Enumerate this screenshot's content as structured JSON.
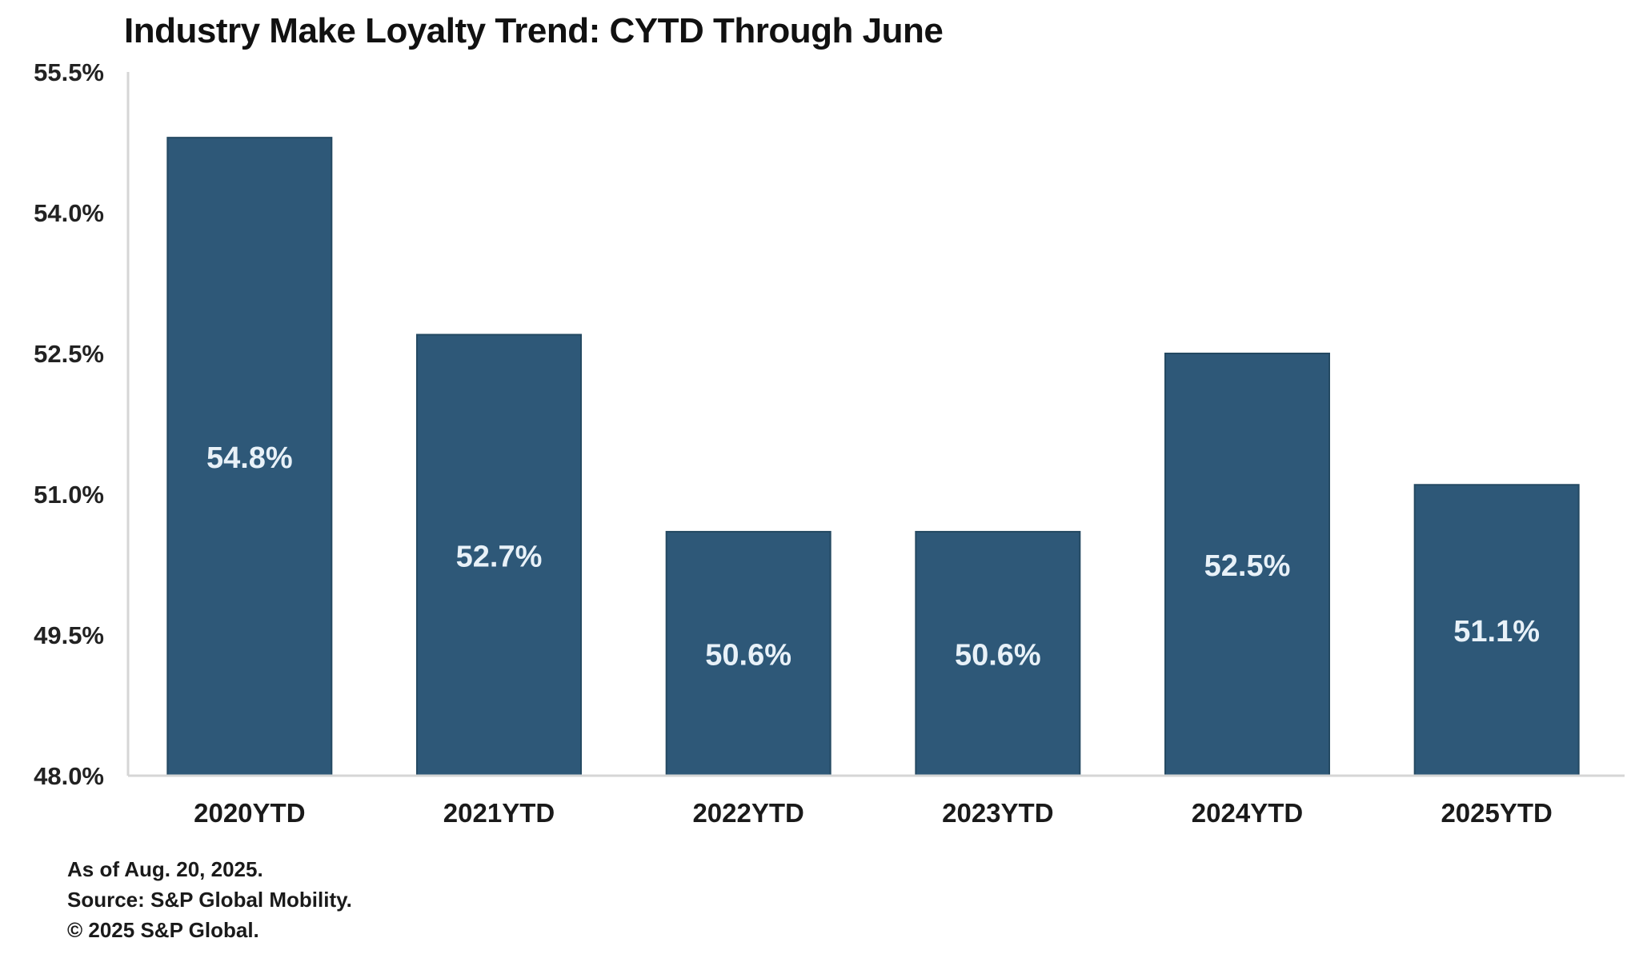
{
  "chart_data": {
    "type": "bar",
    "title": "Industry Make Loyalty Trend: CYTD Through June",
    "xlabel": "",
    "ylabel": "",
    "categories": [
      "2020YTD",
      "2021YTD",
      "2022YTD",
      "2023YTD",
      "2024YTD",
      "2025YTD"
    ],
    "values": [
      54.8,
      52.7,
      50.6,
      50.6,
      52.5,
      51.1
    ],
    "data_labels": [
      "54.8%",
      "52.7%",
      "50.6%",
      "50.6%",
      "52.5%",
      "51.1%"
    ],
    "ylim": [
      48.0,
      55.5
    ],
    "yticks": [
      48.0,
      49.5,
      51.0,
      52.5,
      54.0,
      55.5
    ],
    "ytick_labels": [
      "48.0%",
      "49.5%",
      "51.0%",
      "52.5%",
      "54.0%",
      "55.5%"
    ],
    "grid": false,
    "legend": "none",
    "bar_color": "#2e5878",
    "label_color": "#e8f1f8"
  },
  "footnotes": [
    "As of Aug. 20, 2025.",
    "Source: S&P Global Mobility.",
    "© 2025 S&P Global."
  ]
}
